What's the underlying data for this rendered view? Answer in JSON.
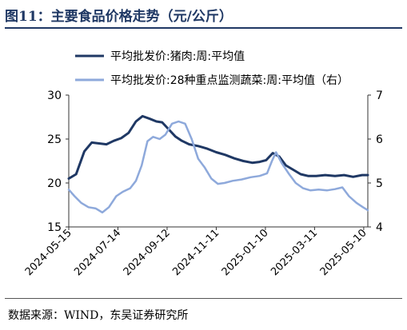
{
  "figure": {
    "title": "图11：主要食品价格走势（元/公斤）",
    "source": "数据来源：WIND，东吴证券研究所"
  },
  "chart_data": {
    "type": "line",
    "title": "",
    "xlabel": "",
    "ylabel_left": "",
    "ylabel_right": "",
    "x_tick_labels": [
      "2024-05-15",
      "2024-07-14",
      "2024-09-12",
      "2024-11-11",
      "2025-01-10",
      "2025-03-11",
      "2025-05-10"
    ],
    "y_left": {
      "lim": [
        15,
        30
      ],
      "ticks": [
        15,
        20,
        25,
        30
      ]
    },
    "y_right": {
      "lim": [
        4,
        7
      ],
      "ticks": [
        4,
        5,
        6,
        7
      ]
    },
    "grid": false,
    "legend_position": "top-left",
    "x_start_date": "2024-05-15",
    "x_end_date": "2025-05-15",
    "series": [
      {
        "name": "平均批发价:猪肉:周:平均值",
        "axis": "left",
        "color": "#1f3864",
        "points": [
          [
            "2024-05-15",
            20.5
          ],
          [
            "2024-05-24",
            21.0
          ],
          [
            "2024-06-03",
            23.6
          ],
          [
            "2024-06-12",
            24.6
          ],
          [
            "2024-06-21",
            24.5
          ],
          [
            "2024-06-30",
            24.4
          ],
          [
            "2024-07-09",
            24.8
          ],
          [
            "2024-07-18",
            25.1
          ],
          [
            "2024-07-27",
            25.7
          ],
          [
            "2024-08-05",
            27.0
          ],
          [
            "2024-08-13",
            27.6
          ],
          [
            "2024-08-22",
            27.3
          ],
          [
            "2024-08-30",
            27.0
          ],
          [
            "2024-09-06",
            26.9
          ],
          [
            "2024-09-14",
            26.1
          ],
          [
            "2024-09-22",
            25.3
          ],
          [
            "2024-09-30",
            24.8
          ],
          [
            "2024-10-09",
            24.4
          ],
          [
            "2024-10-20",
            24.2
          ],
          [
            "2024-10-31",
            23.9
          ],
          [
            "2024-11-11",
            23.5
          ],
          [
            "2024-11-22",
            23.2
          ],
          [
            "2024-12-03",
            22.8
          ],
          [
            "2024-12-14",
            22.5
          ],
          [
            "2024-12-25",
            22.3
          ],
          [
            "2025-01-03",
            22.4
          ],
          [
            "2025-01-11",
            22.6
          ],
          [
            "2025-01-19",
            23.4
          ],
          [
            "2025-01-27",
            23.0
          ],
          [
            "2025-02-04",
            22.0
          ],
          [
            "2025-02-13",
            21.5
          ],
          [
            "2025-02-22",
            21.0
          ],
          [
            "2025-03-03",
            20.8
          ],
          [
            "2025-03-13",
            20.8
          ],
          [
            "2025-03-24",
            20.9
          ],
          [
            "2025-04-05",
            20.8
          ],
          [
            "2025-04-16",
            20.9
          ],
          [
            "2025-04-27",
            20.7
          ],
          [
            "2025-05-08",
            20.9
          ],
          [
            "2025-05-15",
            20.9
          ]
        ]
      },
      {
        "name": "平均批发价:28种重点监测蔬菜:周:平均值（右）",
        "axis": "right",
        "color": "#8ea9db",
        "points": [
          [
            "2024-05-15",
            4.85
          ],
          [
            "2024-05-22",
            4.7
          ],
          [
            "2024-05-30",
            4.55
          ],
          [
            "2024-06-08",
            4.45
          ],
          [
            "2024-06-17",
            4.42
          ],
          [
            "2024-06-25",
            4.33
          ],
          [
            "2024-07-03",
            4.45
          ],
          [
            "2024-07-12",
            4.7
          ],
          [
            "2024-07-20",
            4.8
          ],
          [
            "2024-07-29",
            4.88
          ],
          [
            "2024-08-05",
            5.05
          ],
          [
            "2024-08-12",
            5.4
          ],
          [
            "2024-08-19",
            5.95
          ],
          [
            "2024-08-26",
            6.05
          ],
          [
            "2024-09-03",
            6.0
          ],
          [
            "2024-09-10",
            6.1
          ],
          [
            "2024-09-18",
            6.35
          ],
          [
            "2024-09-26",
            6.4
          ],
          [
            "2024-10-04",
            6.35
          ],
          [
            "2024-10-12",
            6.0
          ],
          [
            "2024-10-20",
            5.55
          ],
          [
            "2024-10-28",
            5.35
          ],
          [
            "2024-11-05",
            5.1
          ],
          [
            "2024-11-13",
            4.98
          ],
          [
            "2024-11-21",
            5.0
          ],
          [
            "2024-12-01",
            5.05
          ],
          [
            "2024-12-12",
            5.08
          ],
          [
            "2024-12-23",
            5.13
          ],
          [
            "2025-01-03",
            5.16
          ],
          [
            "2025-01-12",
            5.22
          ],
          [
            "2025-01-18",
            5.5
          ],
          [
            "2025-01-23",
            5.7
          ],
          [
            "2025-01-30",
            5.45
          ],
          [
            "2025-02-08",
            5.2
          ],
          [
            "2025-02-16",
            5.0
          ],
          [
            "2025-02-25",
            4.88
          ],
          [
            "2025-03-06",
            4.83
          ],
          [
            "2025-03-16",
            4.85
          ],
          [
            "2025-03-26",
            4.83
          ],
          [
            "2025-04-05",
            4.86
          ],
          [
            "2025-04-14",
            4.9
          ],
          [
            "2025-04-22",
            4.7
          ],
          [
            "2025-05-01",
            4.55
          ],
          [
            "2025-05-09",
            4.45
          ],
          [
            "2025-05-15",
            4.38
          ]
        ]
      }
    ]
  }
}
